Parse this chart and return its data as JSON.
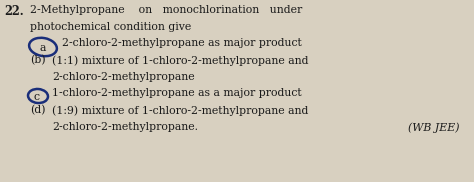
{
  "background_color": "#d8d0c0",
  "question_number": "22.",
  "line1": "2-Methylpropane    on   monochlorination   under",
  "line2": "photochemical condition give",
  "line_a": "2-chloro-2-methylpropane as major product",
  "line_b1": "(1:1) mixture of 1-chloro-2-methylpropane and",
  "line_b2": "2-chloro-2-methylpropane",
  "line_c": "1-chloro-2-methylpropane as a major product",
  "line_d1": "(1:9) mixture of 1-chloro-2-methylpropane and",
  "line_d2": "2-chloro-2-methylpropane.",
  "wbjee": "(WB JEE)",
  "label_b": "(b)",
  "label_d": "(d)",
  "font_size": 7.8,
  "text_color": "#1a1a1a",
  "circle_color": "#1a2e7a"
}
